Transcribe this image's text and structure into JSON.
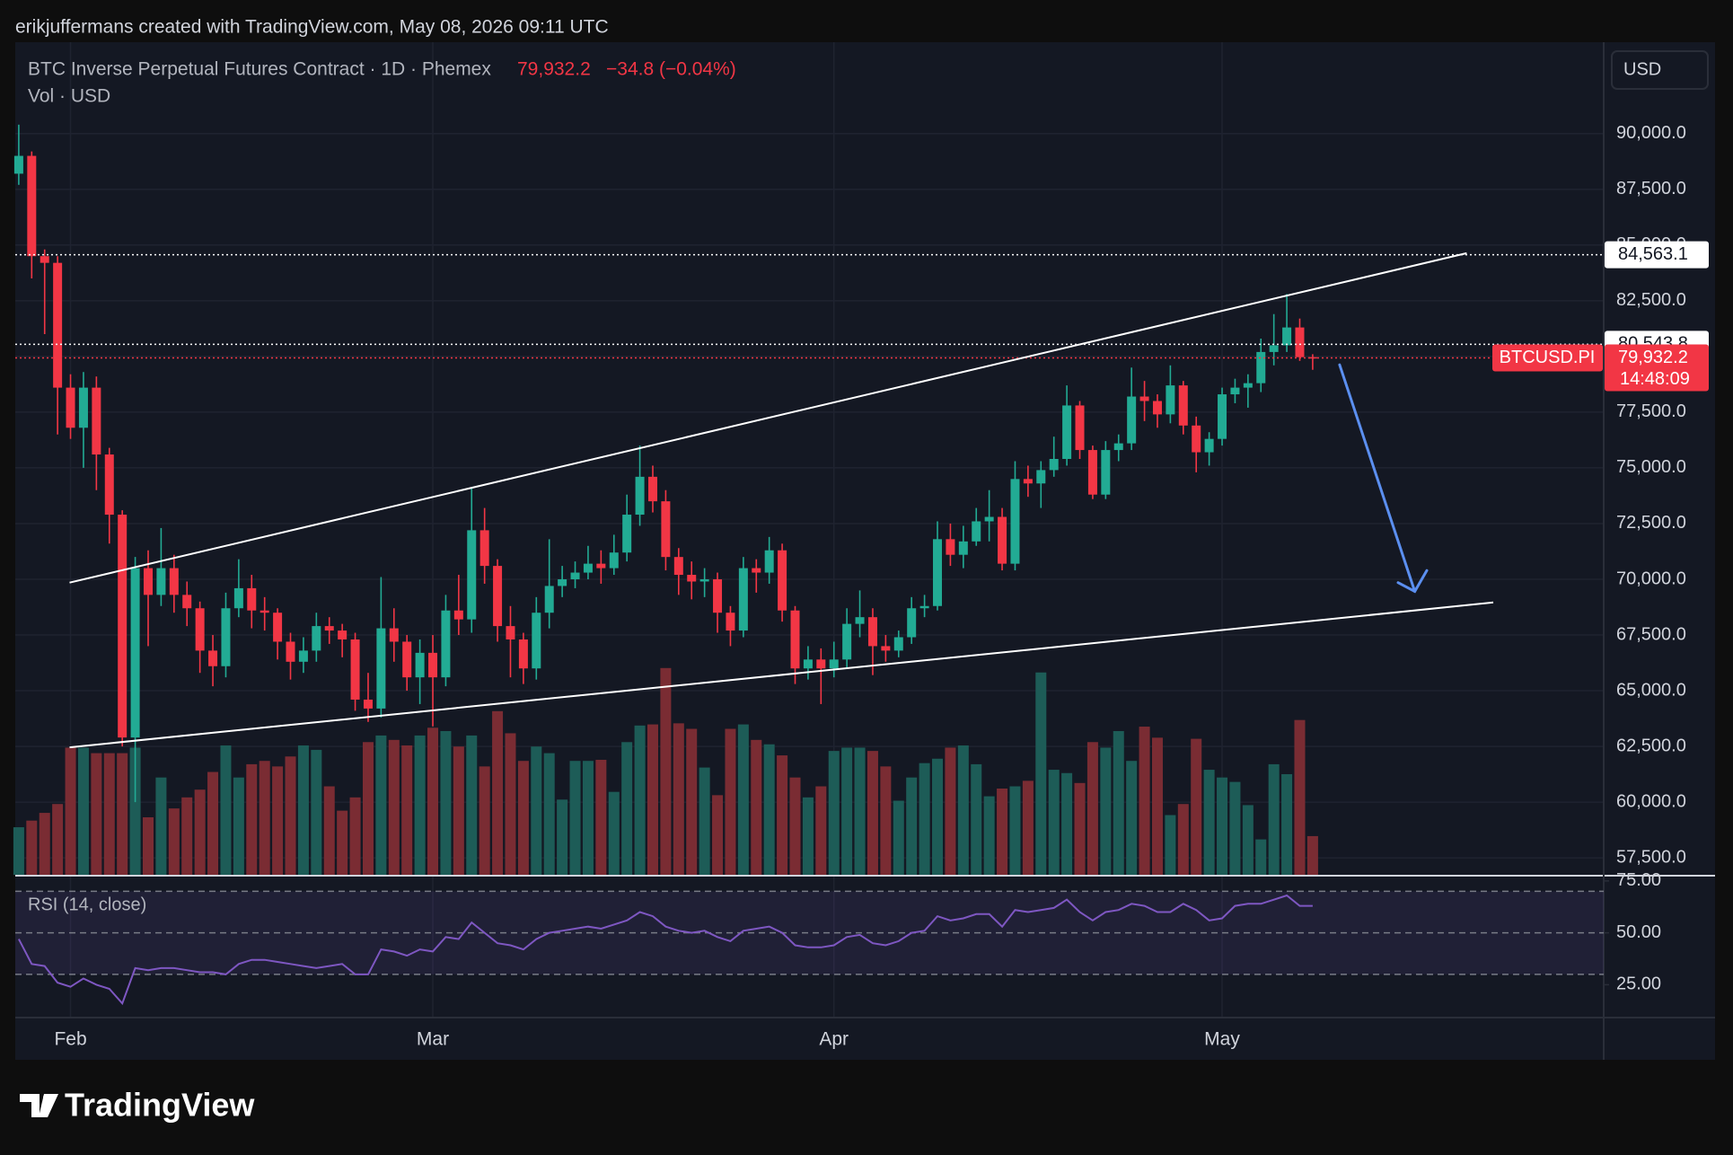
{
  "header": "erikjuffermans created with TradingView.com, May 08, 2026 09:11 UTC",
  "logo": "TradingView",
  "chart_data": {
    "type": "candlestick",
    "title": "BTC Inverse Perpetual Futures Contract · 1D · Phemex",
    "last_price": {
      "value": 79932.2,
      "label": "79,932.2"
    },
    "change": "−34.8 (−0.04%)",
    "volume_title": "Vol · USD",
    "currency": "USD",
    "symbol": "BTCUSD.PI",
    "countdown": "14:48:09",
    "up_color": "#22ab94",
    "down_color": "#f23645",
    "volume_up_color": "#1d5c57",
    "volume_down_color": "#7a2c33",
    "categories": [
      null,
      null,
      null,
      null,
      "Feb",
      null,
      null,
      null,
      null,
      null,
      null,
      null,
      null,
      null,
      null,
      null,
      null,
      null,
      null,
      null,
      null,
      null,
      null,
      null,
      null,
      null,
      null,
      null,
      null,
      null,
      null,
      null,
      "Mar",
      null,
      null,
      null,
      null,
      null,
      null,
      null,
      null,
      null,
      null,
      null,
      null,
      null,
      null,
      null,
      null,
      null,
      null,
      null,
      null,
      null,
      null,
      null,
      null,
      null,
      null,
      null,
      null,
      null,
      null,
      "Apr",
      null,
      null,
      null,
      null,
      null,
      null,
      null,
      null,
      null,
      null,
      null,
      null,
      null,
      null,
      null,
      null,
      null,
      null,
      null,
      null,
      null,
      null,
      null,
      null,
      null,
      null,
      null,
      null,
      null,
      "May",
      null,
      null,
      null,
      null,
      null,
      null,
      null
    ],
    "open": [
      88200,
      89000,
      84500,
      84200,
      78600,
      76800,
      78600,
      75600,
      72900,
      62900,
      70500,
      69300,
      70500,
      69300,
      68700,
      66800,
      66100,
      68700,
      69600,
      68600,
      68500,
      67200,
      66300,
      66800,
      67900,
      67700,
      67300,
      64600,
      64200,
      67800,
      67200,
      65600,
      66700,
      65600,
      68600,
      68200,
      72200,
      70600,
      67900,
      67300,
      66000,
      68500,
      69700,
      70000,
      70300,
      70700,
      70500,
      71200,
      72900,
      74600,
      73500,
      71000,
      70200,
      69900,
      70000,
      68500,
      67700,
      70500,
      70300,
      71300,
      68600,
      66000,
      66400,
      66000,
      66400,
      68000,
      68300,
      67000,
      66800,
      67400,
      68700,
      68800,
      71800,
      71100,
      71700,
      72600,
      72800,
      70700,
      74500,
      74300,
      74900,
      75400,
      77800,
      75800,
      73800,
      75800,
      76100,
      78200,
      78000,
      77400,
      78700,
      76900,
      75700,
      76300,
      78300,
      78600,
      78800,
      80200,
      80500,
      81300,
      79967
    ],
    "high": [
      90400,
      89200,
      84800,
      84500,
      79200,
      79300,
      79100,
      75900,
      73100,
      71000,
      71300,
      72300,
      71100,
      69900,
      69000,
      67500,
      69400,
      70900,
      70200,
      69200,
      68700,
      67600,
      67400,
      68500,
      68300,
      68000,
      67600,
      65800,
      70100,
      68700,
      67500,
      67300,
      67500,
      69300,
      70200,
      74100,
      73200,
      70900,
      68800,
      67600,
      69200,
      71800,
      70600,
      70800,
      71500,
      71300,
      72000,
      73800,
      76000,
      75100,
      74000,
      71400,
      70800,
      70500,
      70300,
      68800,
      71000,
      70900,
      71900,
      71600,
      68800,
      67000,
      66900,
      67200,
      68700,
      69500,
      68700,
      67500,
      67700,
      69200,
      69300,
      72600,
      72500,
      72400,
      73200,
      74000,
      73200,
      75300,
      75100,
      75300,
      76400,
      78700,
      78000,
      76000,
      76200,
      76500,
      79500,
      78900,
      78300,
      79600,
      78900,
      77300,
      76600,
      78600,
      79000,
      79200,
      80800,
      81900,
      82800,
      81700,
      80100
    ],
    "low": [
      87700,
      83500,
      81000,
      76500,
      76300,
      75000,
      74000,
      71600,
      62500,
      60000,
      67000,
      68800,
      68500,
      67900,
      65800,
      65200,
      65600,
      68300,
      67800,
      67700,
      66400,
      65500,
      65800,
      66300,
      67100,
      66500,
      64100,
      63600,
      63800,
      66300,
      65000,
      64400,
      63400,
      65200,
      67500,
      67600,
      69800,
      67200,
      65600,
      65300,
      65500,
      67800,
      69200,
      69600,
      70000,
      69800,
      70200,
      70800,
      72400,
      73000,
      70400,
      69300,
      69100,
      69200,
      67600,
      67000,
      67400,
      69400,
      69800,
      68100,
      65300,
      65500,
      64400,
      65600,
      66000,
      67400,
      65700,
      66300,
      66500,
      67100,
      68300,
      68600,
      70600,
      70500,
      71500,
      71700,
      70400,
      70400,
      73700,
      73200,
      74600,
      75100,
      75400,
      73600,
      73600,
      75300,
      75800,
      77100,
      76800,
      77000,
      76500,
      74800,
      75100,
      76000,
      77900,
      77700,
      78400,
      79600,
      80200,
      79800,
      79400
    ],
    "close": [
      89000,
      84500,
      84200,
      78600,
      76800,
      78600,
      75600,
      72900,
      62900,
      70500,
      69300,
      70500,
      69300,
      68700,
      66800,
      66100,
      68700,
      69600,
      68600,
      68500,
      67200,
      66300,
      66800,
      67900,
      67700,
      67300,
      64600,
      64200,
      67800,
      67200,
      65600,
      66700,
      65600,
      68600,
      68200,
      72200,
      70600,
      67900,
      67300,
      66000,
      68500,
      69700,
      70000,
      70300,
      70700,
      70500,
      71200,
      72900,
      74600,
      73500,
      71000,
      70200,
      69900,
      70000,
      68500,
      67700,
      70500,
      70300,
      71300,
      68600,
      66000,
      66400,
      66000,
      66400,
      68000,
      68300,
      67000,
      66800,
      67400,
      68700,
      68800,
      71800,
      71100,
      71700,
      72600,
      72800,
      70700,
      74500,
      74300,
      74900,
      75400,
      77800,
      75800,
      73800,
      75800,
      76100,
      78200,
      78000,
      77400,
      78700,
      76900,
      75700,
      76300,
      78300,
      78600,
      78800,
      80200,
      80500,
      81300,
      79967,
      79932.2
    ],
    "volume": [
      43,
      49,
      56,
      64,
      115,
      115,
      110,
      110,
      110,
      115,
      52,
      88,
      60,
      70,
      77,
      93,
      117,
      88,
      100,
      103,
      98,
      107,
      117,
      113,
      80,
      58,
      70,
      120,
      126,
      122,
      117,
      126,
      133,
      130,
      116,
      126,
      98,
      148,
      128,
      103,
      116,
      110,
      68,
      103,
      103,
      104,
      75,
      120,
      135,
      136,
      187,
      137,
      132,
      97,
      72,
      132,
      136,
      122,
      118,
      108,
      88,
      70,
      80,
      112,
      115,
      115,
      112,
      98,
      67,
      88,
      101,
      105,
      115,
      117,
      100,
      71,
      78,
      80,
      85,
      183,
      95,
      92,
      83,
      120,
      115,
      130,
      103,
      134,
      124,
      54,
      64,
      123,
      95,
      88,
      84,
      63,
      32,
      100,
      91,
      140,
      35
    ],
    "ylim": [
      56700,
      94100
    ],
    "yticks": [
      {
        "value": 57500,
        "label": "57,500.0"
      },
      {
        "value": 60000,
        "label": "60,000.0"
      },
      {
        "value": 62500,
        "label": "62,500.0"
      },
      {
        "value": 65000,
        "label": "65,000.0"
      },
      {
        "value": 67500,
        "label": "67,500.0"
      },
      {
        "value": 70000,
        "label": "70,000.0"
      },
      {
        "value": 72500,
        "label": "72,500.0"
      },
      {
        "value": 75000,
        "label": "75,000.0"
      },
      {
        "value": 77500,
        "label": "77,500.0"
      },
      {
        "value": 80000,
        "label": "80,000.0"
      },
      {
        "value": 82500,
        "label": "82,500.0"
      },
      {
        "value": 85000,
        "label": "85,000.0"
      },
      {
        "value": 87500,
        "label": "87,500.0"
      },
      {
        "value": 90000,
        "label": "90,000.0"
      }
    ],
    "price_lines": [
      {
        "value": 84563.1,
        "label": "84,563.1"
      },
      {
        "value": 80543.8,
        "label": "80,543.8"
      }
    ],
    "grid": true,
    "rsi": {
      "name": "RSI (14, close)",
      "color": "#7e57c2",
      "values": [
        47,
        35,
        34,
        26,
        24,
        28,
        25,
        23,
        16,
        33,
        32,
        33,
        33,
        32,
        31,
        31,
        30,
        35,
        37,
        37,
        36,
        35,
        34,
        33,
        34,
        35,
        30,
        30,
        42,
        41,
        39,
        42,
        41,
        48,
        47,
        55,
        50,
        45,
        44,
        42,
        47,
        50,
        51,
        52,
        53,
        52,
        54,
        56,
        60,
        58,
        53,
        51,
        50,
        51,
        48,
        46,
        51,
        52,
        53,
        50,
        44,
        43,
        43,
        44,
        48,
        49,
        45,
        44,
        46,
        50,
        51,
        58,
        56,
        57,
        59,
        59,
        53,
        61,
        60,
        61,
        62,
        66,
        60,
        56,
        60,
        61,
        64,
        63,
        60,
        60,
        64,
        61,
        56,
        57,
        63,
        64,
        64,
        66,
        68,
        63,
        63
      ],
      "ylim": [
        9.6,
        77.1
      ],
      "yticks": [
        {
          "value": 75,
          "label": "75.00"
        },
        {
          "value": 50,
          "label": "50.00"
        },
        {
          "value": 25,
          "label": "25.00"
        }
      ],
      "levels": [
        70,
        50,
        30
      ]
    }
  }
}
